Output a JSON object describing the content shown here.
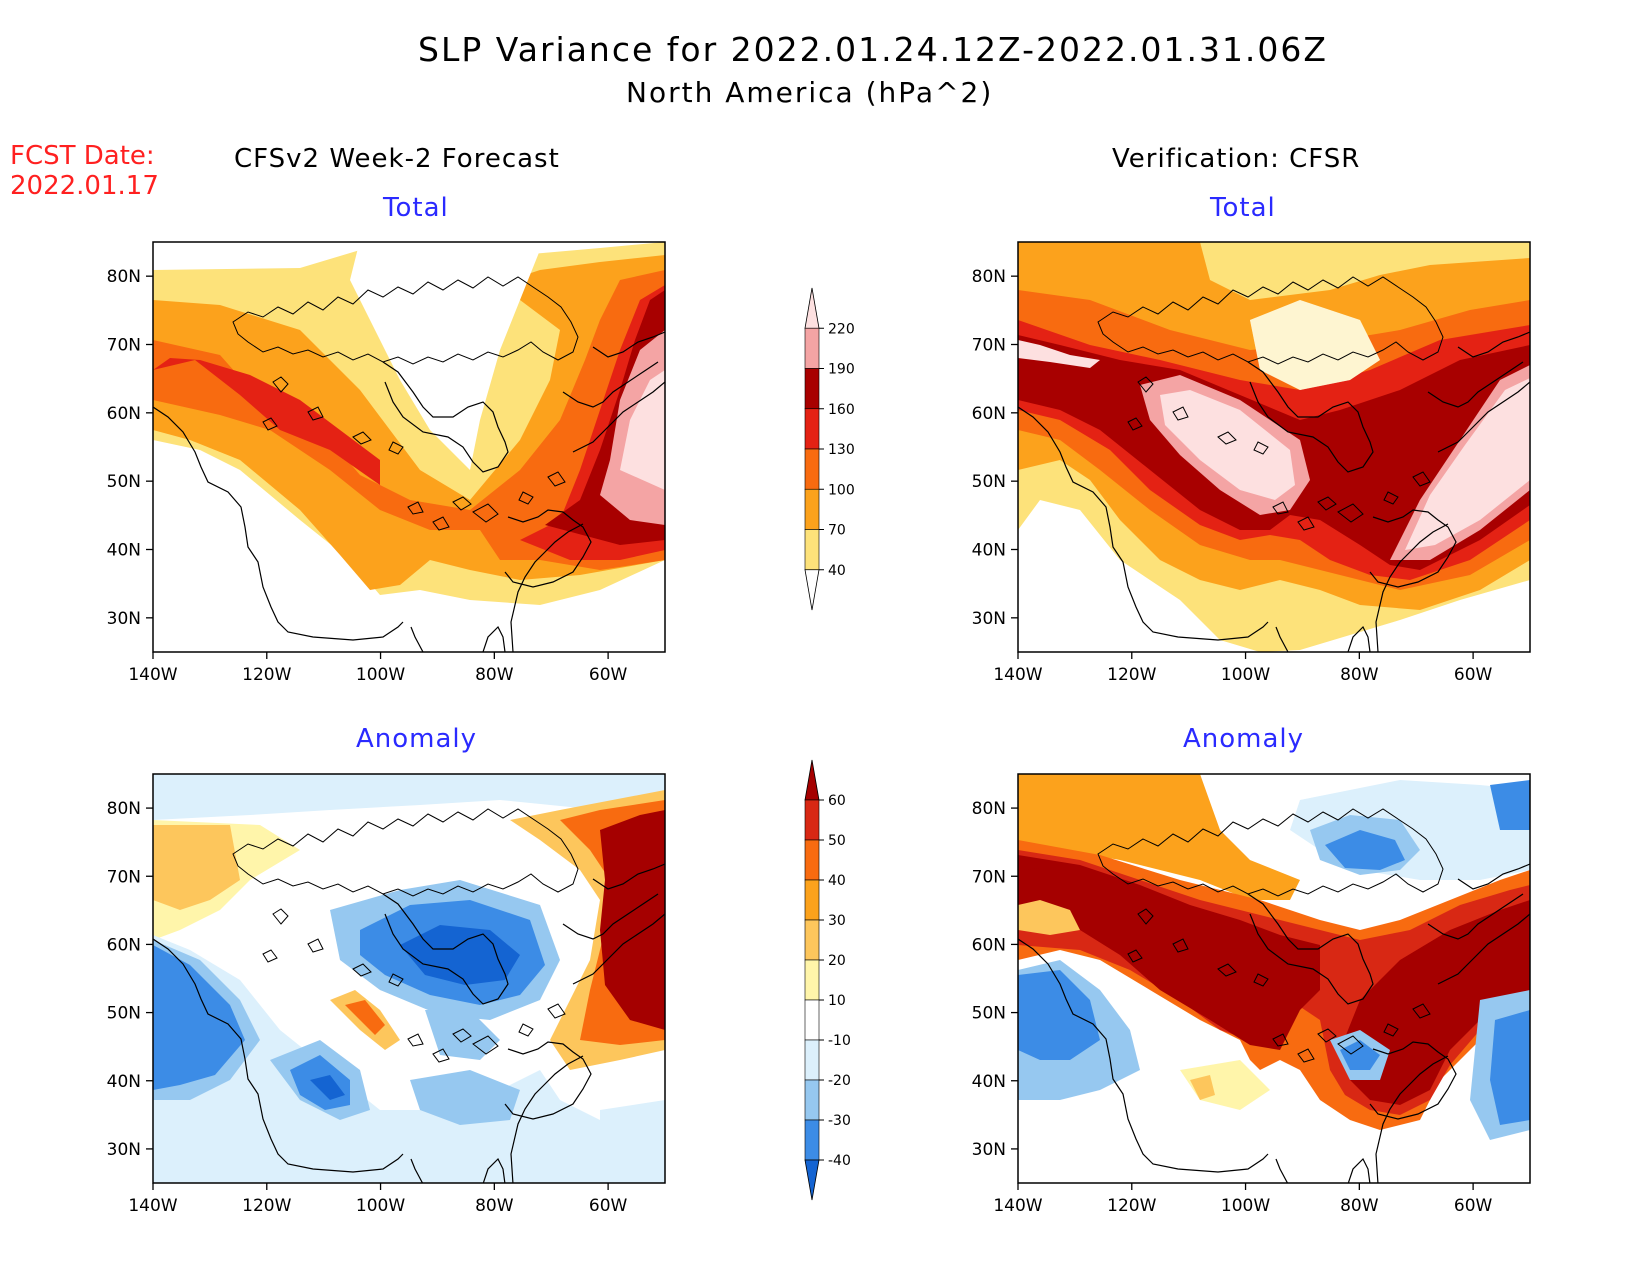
{
  "header": {
    "title": "SLP Variance for 2022.01.24.12Z-2022.01.31.06Z",
    "subtitle": "North America (hPa^2)",
    "fcst_date_label": "FCST Date:",
    "fcst_date_value": "2022.01.17"
  },
  "columns": {
    "left": "CFSv2 Week-2 Forecast",
    "right": "Verification: CFSR"
  },
  "panels": [
    {
      "title": "Total"
    },
    {
      "title": "Total"
    },
    {
      "title": "Anomaly"
    },
    {
      "title": "Anomaly"
    }
  ],
  "axes": {
    "lon_labels": [
      "140W",
      "120W",
      "100W",
      "80W",
      "60W"
    ],
    "lon_values": [
      -140,
      -120,
      -100,
      -80,
      -60
    ],
    "lat_labels": [
      "80N",
      "70N",
      "60N",
      "50N",
      "40N",
      "30N"
    ],
    "lat_values": [
      80,
      70,
      60,
      50,
      40,
      30
    ],
    "lon_range": [
      -140,
      -50
    ],
    "lat_range": [
      25,
      85
    ]
  },
  "colorbar_total": {
    "levels": [
      "40",
      "70",
      "100",
      "130",
      "160",
      "190",
      "220"
    ],
    "colors": [
      "#ffffff",
      "#fde27a",
      "#fca21c",
      "#f86b10",
      "#e42214",
      "#a80000",
      "#f4a4a4",
      "#fde0e0"
    ]
  },
  "colorbar_anomaly": {
    "levels": [
      "-40",
      "-30",
      "-20",
      "-10",
      "10",
      "20",
      "30",
      "40",
      "50",
      "60"
    ],
    "colors": [
      "#1464d2",
      "#3c8ce6",
      "#96c8f0",
      "#dcf0fc",
      "#ffffff",
      "#fff5aa",
      "#fdc65c",
      "#fca21c",
      "#f86b10",
      "#d82814",
      "#a50000"
    ]
  }
}
